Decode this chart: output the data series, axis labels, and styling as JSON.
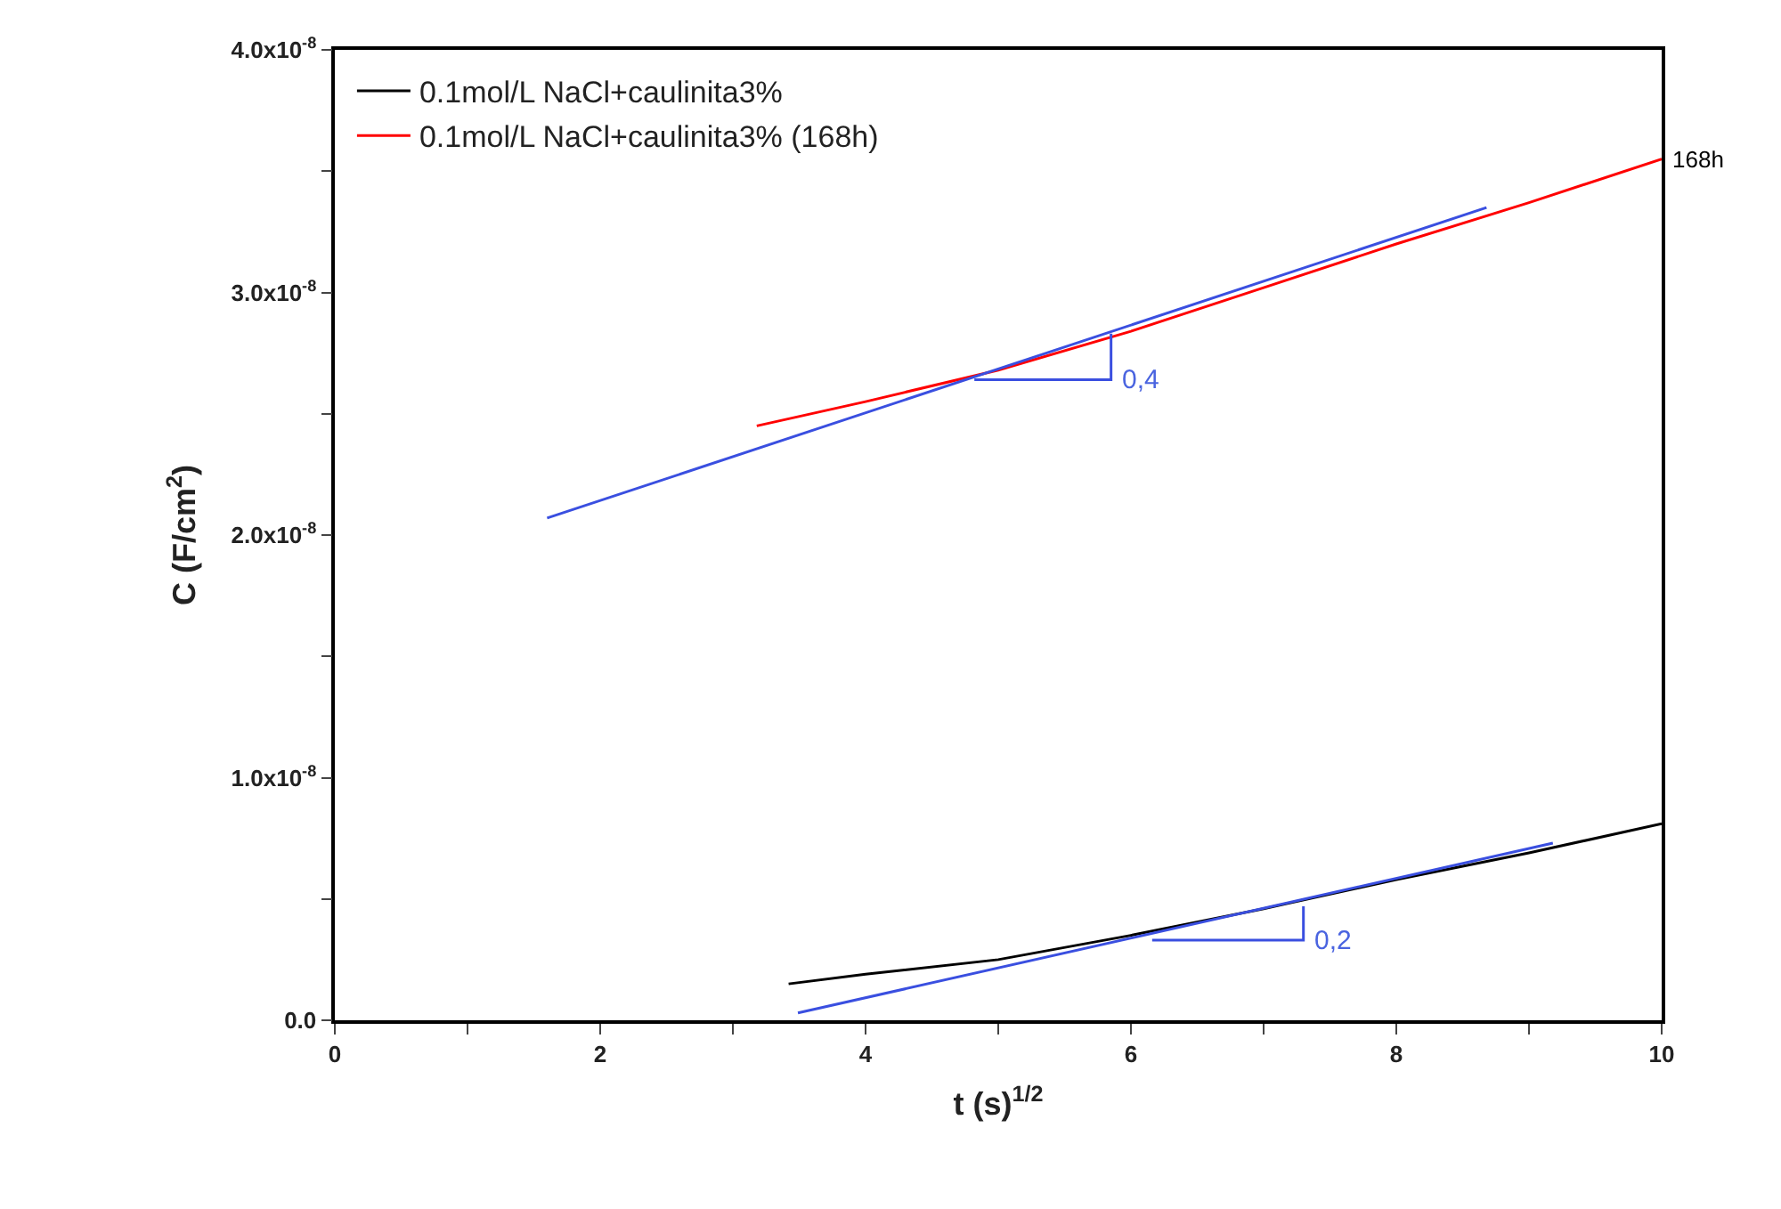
{
  "chart_data": {
    "type": "line",
    "xlabel": "t (s)$^{1/2}$",
    "ylabel": "C (F/cm$^{2}$)",
    "xlim": [
      0,
      10
    ],
    "ylim": [
      0,
      4e-08
    ],
    "xticks": [
      0,
      {
        "value": 1,
        "label": null
      },
      2,
      {
        "value": 3,
        "label": null
      },
      4,
      {
        "value": 5,
        "label": null
      },
      6,
      {
        "value": 7,
        "label": null
      },
      8,
      {
        "value": 9,
        "label": null
      },
      10
    ],
    "yticks": [
      {
        "value": 0,
        "label": "0.0"
      },
      {
        "value": 5e-09,
        "label": null
      },
      {
        "value": 1e-08,
        "label": "1.0x10$^{-8}$"
      },
      {
        "value": 1.5e-08,
        "label": null
      },
      {
        "value": 2e-08,
        "label": "2.0x10$^{-8}$"
      },
      {
        "value": 2.5e-08,
        "label": null
      },
      {
        "value": 3e-08,
        "label": "3.0x10$^{-8}$"
      },
      {
        "value": 3.5e-08,
        "label": null
      },
      {
        "value": 4e-08,
        "label": "4.0x10$^{-8}$"
      }
    ],
    "legend": "top left",
    "marker": "none",
    "line_style": "solid",
    "series": [
      {
        "name": "0.1mol/L NaCl+caulinita3%",
        "color": "#000000",
        "x": [
          3.42,
          4,
          5,
          6,
          7,
          8,
          9,
          10
        ],
        "values": [
          1.5e-09,
          1.9e-09,
          2.5e-09,
          3.5e-09,
          4.6e-09,
          5.8e-09,
          6.9e-09,
          8.1e-09
        ]
      },
      {
        "name": "0.1mol/L NaCl+caulinita3% (168h)",
        "color": "#ff0000",
        "x": [
          3.18,
          4,
          5,
          6,
          7,
          8,
          9,
          10
        ],
        "values": [
          2.45e-08,
          2.55e-08,
          2.68e-08,
          2.84e-08,
          3.02e-08,
          3.2e-08,
          3.37e-08,
          3.55e-08
        ]
      },
      {
        "color": "#3a4fe0",
        "x": [
          1.6,
          8.68
        ],
        "values": [
          2.07e-08,
          3.35e-08
        ]
      },
      {
        "color": "#3a4fe0",
        "x": [
          4.82,
          5.85,
          5.85
        ],
        "values": [
          2.64e-08,
          2.64e-08,
          2.83e-08
        ]
      },
      {
        "color": "#3a4fe0",
        "x": [
          3.49,
          9.18
        ],
        "values": [
          3e-10,
          7.3e-09
        ]
      },
      {
        "color": "#3a4fe0",
        "x": [
          6.16,
          7.3,
          7.3
        ],
        "values": [
          3.3e-09,
          3.3e-09,
          4.7e-09
        ]
      }
    ],
    "annotations": [
      {
        "text": "168h",
        "x": 10,
        "y": 3.55e-08
      },
      {
        "text": "0,4",
        "x": 5.85,
        "y": 2.64e-08
      },
      {
        "text": "0,2",
        "x": 7.3,
        "y": 3.3e-09
      }
    ]
  }
}
